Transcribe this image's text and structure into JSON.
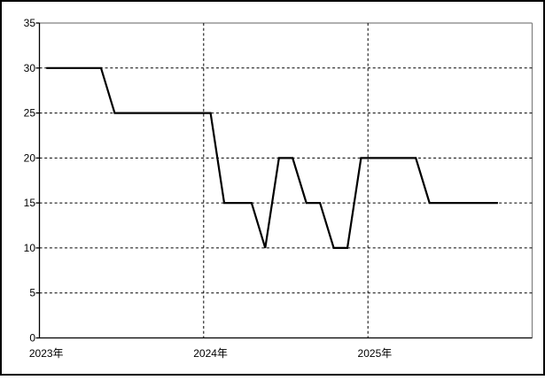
{
  "colors": {
    "background": "#ffffff",
    "outer_border": "#000000",
    "plot_border": "#808080",
    "axis": "#000000",
    "gridline": "#000000",
    "series": "#000000"
  },
  "chart_data": {
    "type": "line",
    "legend": "none",
    "grid": "dashed",
    "x_tick_labels": [
      "2023年",
      "2024年",
      "2025年"
    ],
    "year_tick_slots": [
      0,
      12,
      24
    ],
    "x_slots": 36,
    "x": [
      "2023-01",
      "2023-02",
      "2023-03",
      "2023-04",
      "2023-05",
      "2023-06",
      "2023-07",
      "2023-08",
      "2023-09",
      "2023-10",
      "2023-11",
      "2023-12",
      "2024-01",
      "2024-02",
      "2024-03",
      "2024-04",
      "2024-05",
      "2024-06",
      "2024-07",
      "2024-08",
      "2024-09",
      "2024-10",
      "2024-11",
      "2024-12",
      "2025-01",
      "2025-02",
      "2025-03",
      "2025-04",
      "2025-05",
      "2025-06",
      "2025-07",
      "2025-08",
      "2025-09",
      "2025-10"
    ],
    "values": [
      30,
      30,
      30,
      30,
      30,
      25,
      25,
      25,
      25,
      25,
      25,
      25,
      25,
      15,
      15,
      15,
      10,
      20,
      20,
      15,
      15,
      10,
      10,
      20,
      20,
      20,
      20,
      20,
      15,
      15,
      15,
      15,
      15,
      15
    ],
    "ylim": [
      0,
      35
    ],
    "y_tick_step": 5,
    "y_tick_labels": [
      "0",
      "5",
      "10",
      "15",
      "20",
      "25",
      "30",
      "35"
    ]
  }
}
